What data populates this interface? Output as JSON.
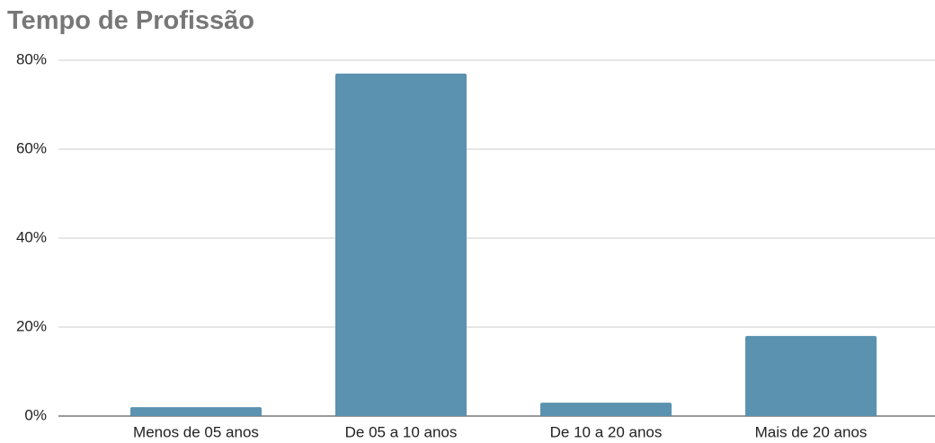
{
  "chart_data": {
    "type": "bar",
    "title": "Tempo de Profissão",
    "categories": [
      "Menos de 05 anos",
      "De 05 a 10 anos",
      "De 10 a 20 anos",
      "Mais de 20 anos"
    ],
    "values": [
      2,
      77,
      3,
      18
    ],
    "color": "#5a92b0",
    "ylim": [
      0,
      80
    ],
    "yticks": [
      {
        "value": 0,
        "label": "0%"
      },
      {
        "value": 20,
        "label": "20%"
      },
      {
        "value": 40,
        "label": "40%"
      },
      {
        "value": 60,
        "label": "60%"
      },
      {
        "value": 80,
        "label": "80%"
      }
    ],
    "grid": true
  }
}
